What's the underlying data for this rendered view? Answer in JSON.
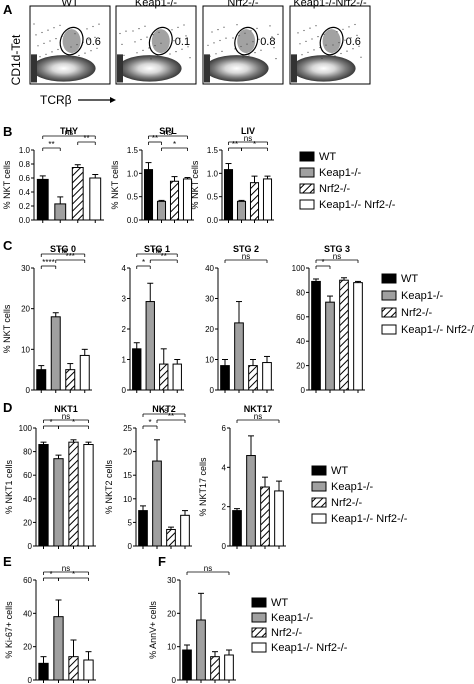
{
  "panel_labels": [
    "A",
    "B",
    "C",
    "D",
    "E",
    "F"
  ],
  "legend": {
    "entries": [
      "WT",
      "Keap1-/-",
      "Nrf2-/-",
      "Keap1-/- Nrf2-/-"
    ],
    "colors": [
      "#000000",
      "#a0a0a0",
      "hatch",
      "#ffffff"
    ]
  },
  "flow": {
    "ylabel": "CD1d-Tet",
    "xlabel": "TCRβ",
    "plots": [
      {
        "title": "WT",
        "gate_value": "0.6"
      },
      {
        "title": "Keap1-/-",
        "gate_value": "0.1"
      },
      {
        "title": "Nrf2-/-",
        "gate_value": "0.8"
      },
      {
        "title": "Keap1-/-Nrf2-/-",
        "gate_value": "0.6"
      }
    ]
  },
  "chart_data": [
    {
      "panel": "B",
      "type": "bar",
      "title": "THY",
      "ylabel": "% NKT cells",
      "ylim": [
        0,
        1.0
      ],
      "yticks": [
        "0.0",
        "0.2",
        "0.4",
        "0.6",
        "0.8",
        "1.0"
      ],
      "categories": [
        "WT",
        "Keap1-/-",
        "Nrf2-/-",
        "Keap1-/- Nrf2-/-"
      ],
      "values": [
        0.58,
        0.23,
        0.75,
        0.6
      ],
      "errors": [
        0.05,
        0.1,
        0.04,
        0.05
      ],
      "brackets": [
        {
          "from": 0,
          "to": 1,
          "level": 0,
          "label": "**"
        },
        {
          "from": 2,
          "to": 3,
          "level": 1,
          "label": "**"
        },
        {
          "from": 0,
          "to": 3,
          "level": 2,
          "label": "ns"
        }
      ]
    },
    {
      "panel": "B",
      "type": "bar",
      "title": "SPL",
      "ylabel": "% NKT cells",
      "ylim": [
        0,
        1.5
      ],
      "yticks": [
        "0.0",
        "0.5",
        "1.0",
        "1.5"
      ],
      "categories": [
        "WT",
        "Keap1-/-",
        "Nrf2-/-",
        "Keap1-/- Nrf2-/-"
      ],
      "values": [
        1.08,
        0.4,
        0.83,
        0.88
      ],
      "errors": [
        0.15,
        0.02,
        0.1,
        0.03
      ],
      "brackets": [
        {
          "from": 0,
          "to": 1,
          "level": 1,
          "label": "**"
        },
        {
          "from": 1,
          "to": 3,
          "level": 0,
          "label": "*"
        },
        {
          "from": 0,
          "to": 3,
          "level": 2,
          "label": "ns"
        }
      ]
    },
    {
      "panel": "B",
      "type": "bar",
      "title": "LIV",
      "ylabel": "% NKT cells",
      "ylim": [
        0,
        1.5
      ],
      "yticks": [
        "0.0",
        "0.5",
        "1.0",
        "1.5"
      ],
      "categories": [
        "WT",
        "Keap1-/-",
        "Nrf2-/-",
        "Keap1-/- Nrf2-/-"
      ],
      "values": [
        1.08,
        0.4,
        0.8,
        0.88
      ],
      "errors": [
        0.13,
        0.02,
        0.14,
        0.06
      ],
      "brackets": [
        {
          "from": 0,
          "to": 1,
          "level": 0,
          "label": "**"
        },
        {
          "from": 1,
          "to": 3,
          "level": 0,
          "label": "*"
        },
        {
          "from": 0,
          "to": 3,
          "level": 1,
          "label": "ns"
        }
      ]
    },
    {
      "panel": "C",
      "type": "bar",
      "title": "STG 0",
      "ylabel": "% NKT cells",
      "ylim": [
        0,
        30
      ],
      "yticks": [
        "0",
        "10",
        "20",
        "30"
      ],
      "categories": [
        "WT",
        "Keap1-/-",
        "Nrf2-/-",
        "Keap1-/- Nrf2-/-"
      ],
      "values": [
        5,
        18,
        5,
        8.5
      ],
      "errors": [
        1,
        1,
        1.5,
        1.5
      ],
      "brackets": [
        {
          "from": 0,
          "to": 1,
          "level": 0,
          "label": "****"
        },
        {
          "from": 1,
          "to": 3,
          "level": 1,
          "label": "***"
        },
        {
          "from": 0,
          "to": 3,
          "level": 2,
          "label": "ns"
        }
      ]
    },
    {
      "panel": "C",
      "type": "bar",
      "title": "STG 1",
      "ylabel": "",
      "ylim": [
        0,
        4
      ],
      "yticks": [
        "0",
        "1",
        "2",
        "3",
        "4"
      ],
      "categories": [
        "WT",
        "Keap1-/-",
        "Nrf2-/-",
        "Keap1-/- Nrf2-/-"
      ],
      "values": [
        1.35,
        2.9,
        0.85,
        0.85
      ],
      "errors": [
        0.2,
        0.6,
        0.5,
        0.15
      ],
      "brackets": [
        {
          "from": 0,
          "to": 1,
          "level": 0,
          "label": "*"
        },
        {
          "from": 1,
          "to": 3,
          "level": 1,
          "label": "**"
        },
        {
          "from": 0,
          "to": 3,
          "level": 2,
          "label": "ns"
        }
      ]
    },
    {
      "panel": "C",
      "type": "bar",
      "title": "STG 2",
      "ylabel": "",
      "ylim": [
        0,
        40
      ],
      "yticks": [
        "0",
        "10",
        "20",
        "30",
        "40"
      ],
      "categories": [
        "WT",
        "Keap1-/-",
        "Nrf2-/-",
        "Keap1-/- Nrf2-/-"
      ],
      "values": [
        8,
        22,
        8,
        9
      ],
      "errors": [
        2,
        7,
        2,
        2
      ],
      "brackets": [
        {
          "from": 0,
          "to": 3,
          "level": 1,
          "label": "ns"
        }
      ]
    },
    {
      "panel": "C",
      "type": "bar",
      "title": "STG 3",
      "ylabel": "",
      "ylim": [
        0,
        100
      ],
      "yticks": [
        "0",
        "20",
        "40",
        "60",
        "80",
        "100"
      ],
      "categories": [
        "WT",
        "Keap1-/-",
        "Nrf2-/-",
        "Keap1-/- Nrf2-/-"
      ],
      "values": [
        89,
        72,
        90,
        88
      ],
      "errors": [
        2,
        5,
        2,
        1
      ],
      "brackets": [
        {
          "from": 0,
          "to": 1,
          "level": 0,
          "label": "*"
        },
        {
          "from": 0,
          "to": 3,
          "level": 1,
          "label": "ns"
        }
      ]
    },
    {
      "panel": "D",
      "type": "bar",
      "title": "NKT1",
      "ylabel": "% NKT1 cells",
      "ylim": [
        0,
        100
      ],
      "yticks": [
        "0",
        "20",
        "40",
        "60",
        "80",
        "100"
      ],
      "categories": [
        "WT",
        "Keap1-/-",
        "Nrf2-/-",
        "Keap1-/- Nrf2-/-"
      ],
      "values": [
        86,
        74,
        88,
        86
      ],
      "errors": [
        2,
        3,
        2,
        2
      ],
      "brackets": [
        {
          "from": 0,
          "to": 1,
          "level": 0,
          "label": "*"
        },
        {
          "from": 1,
          "to": 3,
          "level": 0,
          "label": "*"
        },
        {
          "from": 0,
          "to": 3,
          "level": 1,
          "label": "ns"
        }
      ]
    },
    {
      "panel": "D",
      "type": "bar",
      "title": "NKT2",
      "ylabel": "% NKT2 cells",
      "ylim": [
        0,
        25
      ],
      "yticks": [
        "0",
        "5",
        "10",
        "15",
        "20",
        "25"
      ],
      "categories": [
        "WT",
        "Keap1-/-",
        "Nrf2-/-",
        "Keap1-/- Nrf2-/-"
      ],
      "values": [
        7.5,
        18,
        3.5,
        6.5
      ],
      "errors": [
        1,
        4.5,
        0.5,
        1
      ],
      "brackets": [
        {
          "from": 0,
          "to": 1,
          "level": 0,
          "label": "*"
        },
        {
          "from": 1,
          "to": 3,
          "level": 1,
          "label": "**"
        },
        {
          "from": 0,
          "to": 3,
          "level": 2,
          "label": "ns"
        }
      ]
    },
    {
      "panel": "D",
      "type": "bar",
      "title": "NKT17",
      "ylabel": "% NKT17 cells",
      "ylim": [
        0,
        6
      ],
      "yticks": [
        "0",
        "2",
        "4",
        "6"
      ],
      "categories": [
        "WT",
        "Keap1-/-",
        "Nrf2-/-",
        "Keap1-/- Nrf2-/-"
      ],
      "values": [
        1.8,
        4.6,
        3.0,
        2.8
      ],
      "errors": [
        0.1,
        1.0,
        0.5,
        0.5
      ],
      "brackets": [
        {
          "from": 0,
          "to": 3,
          "level": 1,
          "label": "ns"
        }
      ]
    },
    {
      "panel": "E",
      "type": "bar",
      "title": "",
      "ylabel": "% Ki-67+ cells",
      "ylim": [
        0,
        60
      ],
      "yticks": [
        "0",
        "20",
        "40",
        "60"
      ],
      "categories": [
        "WT",
        "Keap1-/-",
        "Nrf2-/-",
        "Keap1-/- Nrf2-/-"
      ],
      "values": [
        10,
        38,
        14,
        12
      ],
      "errors": [
        4,
        10,
        10,
        5
      ],
      "brackets": [
        {
          "from": 0,
          "to": 1,
          "level": 0,
          "label": "*"
        },
        {
          "from": 1,
          "to": 3,
          "level": 0,
          "label": "*"
        },
        {
          "from": 0,
          "to": 3,
          "level": 1,
          "label": "ns"
        }
      ]
    },
    {
      "panel": "F",
      "type": "bar",
      "title": "",
      "ylabel": "% AnnV+ cells",
      "ylim": [
        0,
        30
      ],
      "yticks": [
        "0",
        "10",
        "20",
        "30"
      ],
      "categories": [
        "WT",
        "Keap1-/-",
        "Nrf2-/-",
        "Keap1-/- Nrf2-/-"
      ],
      "values": [
        9,
        18,
        7,
        7.5
      ],
      "errors": [
        1.5,
        8,
        1.5,
        1.5
      ],
      "brackets": [
        {
          "from": 0,
          "to": 3,
          "level": 1,
          "label": "ns"
        }
      ]
    }
  ]
}
